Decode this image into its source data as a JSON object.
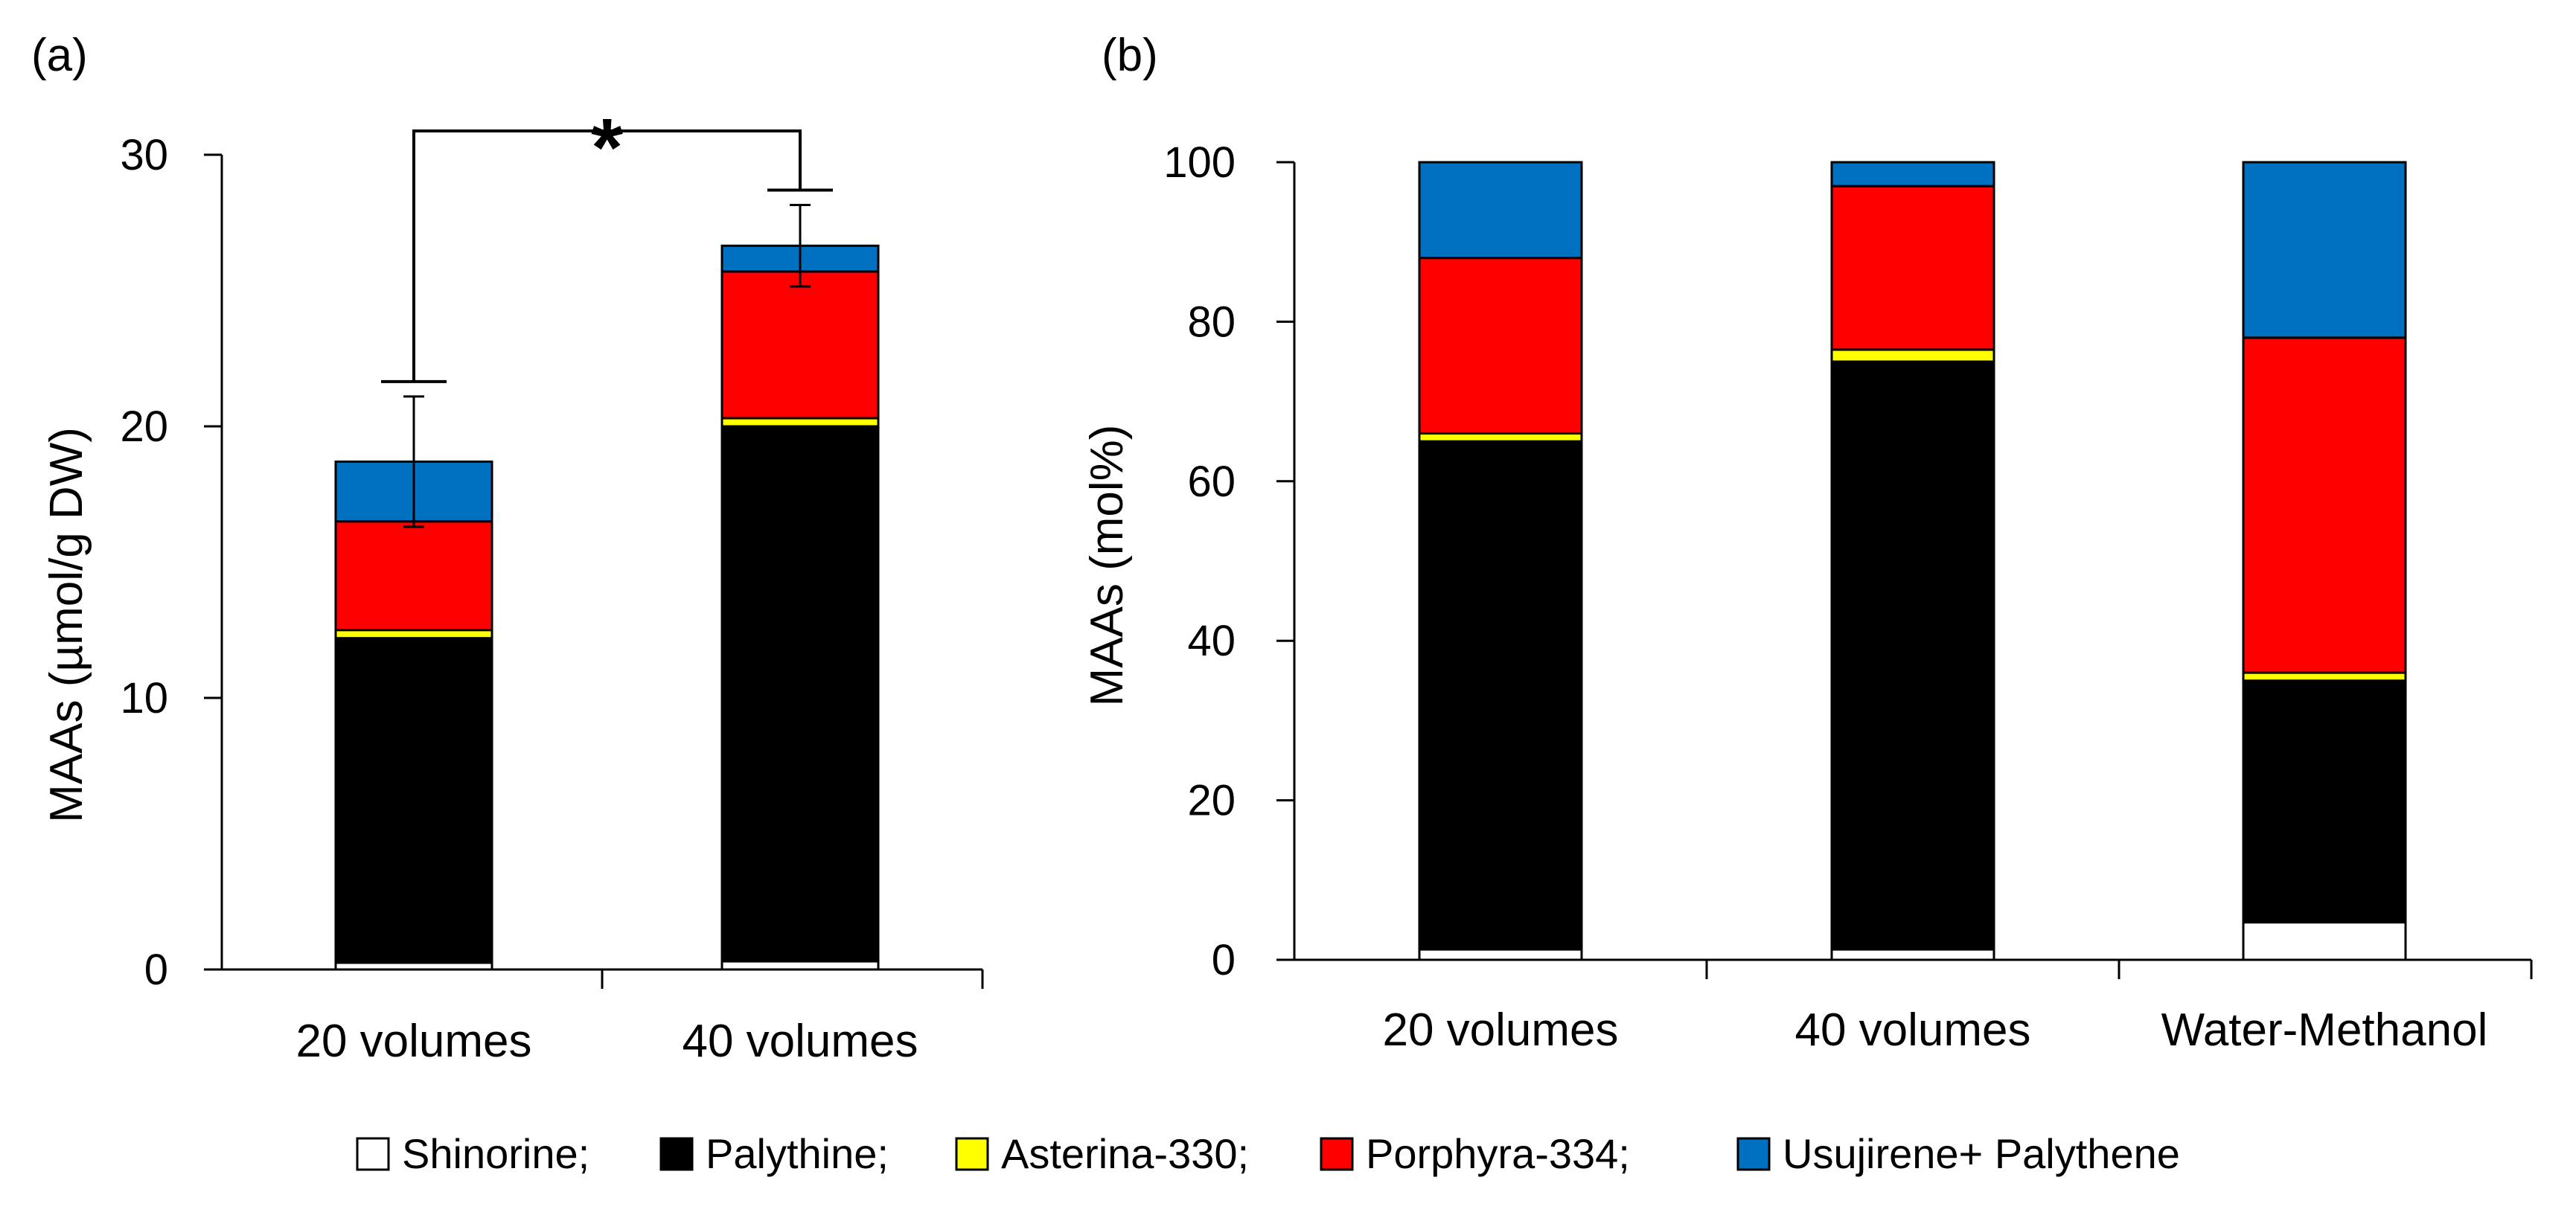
{
  "legend": {
    "items": [
      {
        "name": "Shinorine;",
        "color": "#ffffff"
      },
      {
        "name": "Palythine;",
        "color": "#000000"
      },
      {
        "name": "Asterina-330;",
        "color": "#ffff00"
      },
      {
        "name": "Porphyra-334;",
        "color": "#ff0000"
      },
      {
        "name": "Usujirene+ Palythene",
        "color": "#0070c0"
      }
    ]
  },
  "chart_data": [
    {
      "panel_label": "(a)",
      "type": "bar",
      "stacked": true,
      "ylabel": "MAAs (µmol/g DW)",
      "ylim": [
        0,
        30
      ],
      "yticks": [
        "0",
        "10",
        "20",
        "30"
      ],
      "categories": [
        "20 volumes",
        "40 volumes"
      ],
      "series": [
        {
          "name": "Shinorine",
          "values": [
            0.25,
            0.3
          ]
        },
        {
          "name": "Palythine",
          "values": [
            11.95,
            19.7
          ]
        },
        {
          "name": "Asterina-330",
          "values": [
            0.3,
            0.3
          ]
        },
        {
          "name": "Porphyra-334",
          "values": [
            4.0,
            5.4
          ]
        },
        {
          "name": "Usujirene+ Palythene",
          "values": [
            2.2,
            0.95
          ]
        }
      ],
      "error_bars": [
        2.4,
        1.5
      ],
      "significance": {
        "between": [
          "20 volumes",
          "40 volumes"
        ],
        "label": "*"
      }
    },
    {
      "panel_label": "(b)",
      "type": "bar",
      "stacked": true,
      "ylabel": "MAAs (mol%)",
      "ylim": [
        0,
        100
      ],
      "yticks": [
        "0",
        "20",
        "40",
        "60",
        "80",
        "100"
      ],
      "categories": [
        "20 volumes",
        "40 volumes",
        "Water-Methanol"
      ],
      "series": [
        {
          "name": "Shinorine",
          "values": [
            1.3,
            1.3,
            4.7
          ]
        },
        {
          "name": "Palythine",
          "values": [
            63.7,
            73.7,
            30.3
          ]
        },
        {
          "name": "Asterina-330",
          "values": [
            1.0,
            1.5,
            1.0
          ]
        },
        {
          "name": "Porphyra-334",
          "values": [
            22.0,
            20.5,
            42.0
          ]
        },
        {
          "name": "Usujirene+ Palythene",
          "values": [
            12.0,
            3.0,
            22.0
          ]
        }
      ]
    }
  ]
}
